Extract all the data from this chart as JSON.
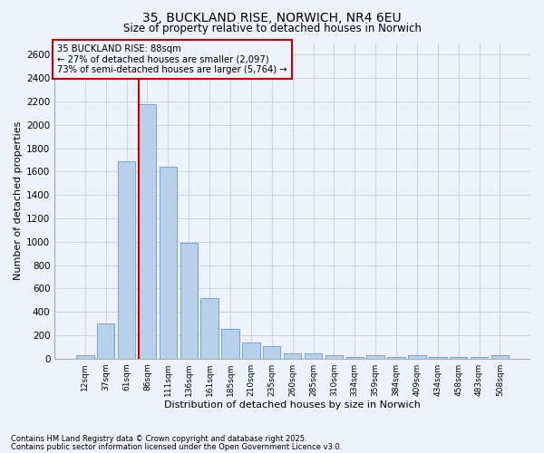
{
  "title1": "35, BUCKLAND RISE, NORWICH, NR4 6EU",
  "title2": "Size of property relative to detached houses in Norwich",
  "xlabel": "Distribution of detached houses by size in Norwich",
  "ylabel": "Number of detached properties",
  "categories": [
    "12sqm",
    "37sqm",
    "61sqm",
    "86sqm",
    "111sqm",
    "136sqm",
    "161sqm",
    "185sqm",
    "210sqm",
    "235sqm",
    "260sqm",
    "285sqm",
    "310sqm",
    "334sqm",
    "359sqm",
    "384sqm",
    "409sqm",
    "434sqm",
    "458sqm",
    "483sqm",
    "508sqm"
  ],
  "values": [
    25,
    300,
    1690,
    2175,
    1640,
    990,
    515,
    250,
    140,
    105,
    45,
    45,
    30,
    10,
    30,
    10,
    25,
    10,
    10,
    10,
    25
  ],
  "bar_color": "#b8d0ea",
  "bar_edge_color": "#6699cc",
  "vline_x": 3,
  "vline_color": "#cc0000",
  "annotation_title": "35 BUCKLAND RISE: 88sqm",
  "annotation_line1": "← 27% of detached houses are smaller (2,097)",
  "annotation_line2": "73% of semi-detached houses are larger (5,764) →",
  "annotation_box_color": "#cc0000",
  "ylim": [
    0,
    2700
  ],
  "yticks": [
    0,
    200,
    400,
    600,
    800,
    1000,
    1200,
    1400,
    1600,
    1800,
    2000,
    2200,
    2400,
    2600
  ],
  "footnote1": "Contains HM Land Registry data © Crown copyright and database right 2025.",
  "footnote2": "Contains public sector information licensed under the Open Government Licence v3.0.",
  "bg_color": "#eef2fb",
  "grid_color": "#c5cce0"
}
